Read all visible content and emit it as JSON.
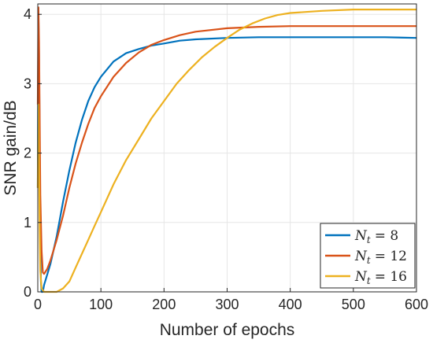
{
  "chart_data": {
    "type": "line",
    "title": "",
    "xlabel": "Number of epochs",
    "ylabel": "SNR gain/dB",
    "xlim": [
      0,
      600
    ],
    "ylim": [
      0,
      4.15
    ],
    "xticks": [
      0,
      100,
      200,
      300,
      400,
      500,
      600
    ],
    "yticks": [
      0,
      1,
      2,
      3,
      4
    ],
    "grid": true,
    "legend_position": "bottom-right",
    "series": [
      {
        "name": "N_t = 8",
        "legend_symbol": "N",
        "legend_sub": "t",
        "legend_value": "= 8",
        "color": "#0072BD",
        "points": [
          [
            0,
            1.5
          ],
          [
            1,
            4.0
          ],
          [
            2,
            3.4
          ],
          [
            3,
            2.0
          ],
          [
            4,
            0.7
          ],
          [
            5,
            0.15
          ],
          [
            6,
            0.0
          ],
          [
            8,
            0.0
          ],
          [
            10,
            0.1
          ],
          [
            20,
            0.4
          ],
          [
            30,
            0.8
          ],
          [
            40,
            1.3
          ],
          [
            50,
            1.75
          ],
          [
            60,
            2.15
          ],
          [
            70,
            2.48
          ],
          [
            80,
            2.75
          ],
          [
            90,
            2.95
          ],
          [
            100,
            3.1
          ],
          [
            120,
            3.32
          ],
          [
            140,
            3.44
          ],
          [
            160,
            3.5
          ],
          [
            180,
            3.55
          ],
          [
            200,
            3.58
          ],
          [
            225,
            3.62
          ],
          [
            250,
            3.64
          ],
          [
            300,
            3.66
          ],
          [
            350,
            3.67
          ],
          [
            400,
            3.67
          ],
          [
            450,
            3.67
          ],
          [
            500,
            3.67
          ],
          [
            550,
            3.67
          ],
          [
            600,
            3.66
          ]
        ]
      },
      {
        "name": "N_t = 12",
        "legend_symbol": "N",
        "legend_sub": "t",
        "legend_value": "= 12",
        "color": "#D95319",
        "points": [
          [
            0,
            2.7
          ],
          [
            1,
            4.1
          ],
          [
            2,
            3.6
          ],
          [
            3,
            2.5
          ],
          [
            4,
            1.4
          ],
          [
            6,
            0.6
          ],
          [
            8,
            0.28
          ],
          [
            10,
            0.26
          ],
          [
            15,
            0.33
          ],
          [
            20,
            0.45
          ],
          [
            30,
            0.75
          ],
          [
            40,
            1.1
          ],
          [
            50,
            1.5
          ],
          [
            60,
            1.85
          ],
          [
            70,
            2.15
          ],
          [
            80,
            2.42
          ],
          [
            90,
            2.65
          ],
          [
            100,
            2.82
          ],
          [
            120,
            3.1
          ],
          [
            140,
            3.3
          ],
          [
            160,
            3.45
          ],
          [
            180,
            3.56
          ],
          [
            200,
            3.63
          ],
          [
            225,
            3.7
          ],
          [
            250,
            3.75
          ],
          [
            300,
            3.8
          ],
          [
            350,
            3.82
          ],
          [
            400,
            3.83
          ],
          [
            450,
            3.83
          ],
          [
            500,
            3.83
          ],
          [
            550,
            3.83
          ],
          [
            600,
            3.83
          ]
        ]
      },
      {
        "name": "N_t = 16",
        "legend_symbol": "N",
        "legend_sub": "t",
        "legend_value": "= 16",
        "color": "#EDB120",
        "points": [
          [
            0,
            1.5
          ],
          [
            1,
            2.7
          ],
          [
            2,
            1.8
          ],
          [
            3,
            0.9
          ],
          [
            4,
            0.3
          ],
          [
            6,
            0.05
          ],
          [
            10,
            0.0
          ],
          [
            20,
            0.0
          ],
          [
            30,
            0.0
          ],
          [
            40,
            0.05
          ],
          [
            50,
            0.15
          ],
          [
            60,
            0.35
          ],
          [
            70,
            0.55
          ],
          [
            80,
            0.75
          ],
          [
            90,
            0.95
          ],
          [
            100,
            1.15
          ],
          [
            120,
            1.55
          ],
          [
            140,
            1.9
          ],
          [
            160,
            2.2
          ],
          [
            180,
            2.5
          ],
          [
            200,
            2.75
          ],
          [
            220,
            3.0
          ],
          [
            240,
            3.2
          ],
          [
            260,
            3.38
          ],
          [
            280,
            3.53
          ],
          [
            300,
            3.66
          ],
          [
            320,
            3.78
          ],
          [
            340,
            3.87
          ],
          [
            360,
            3.94
          ],
          [
            380,
            3.99
          ],
          [
            400,
            4.02
          ],
          [
            450,
            4.05
          ],
          [
            500,
            4.07
          ],
          [
            550,
            4.07
          ],
          [
            600,
            4.07
          ]
        ]
      }
    ]
  }
}
